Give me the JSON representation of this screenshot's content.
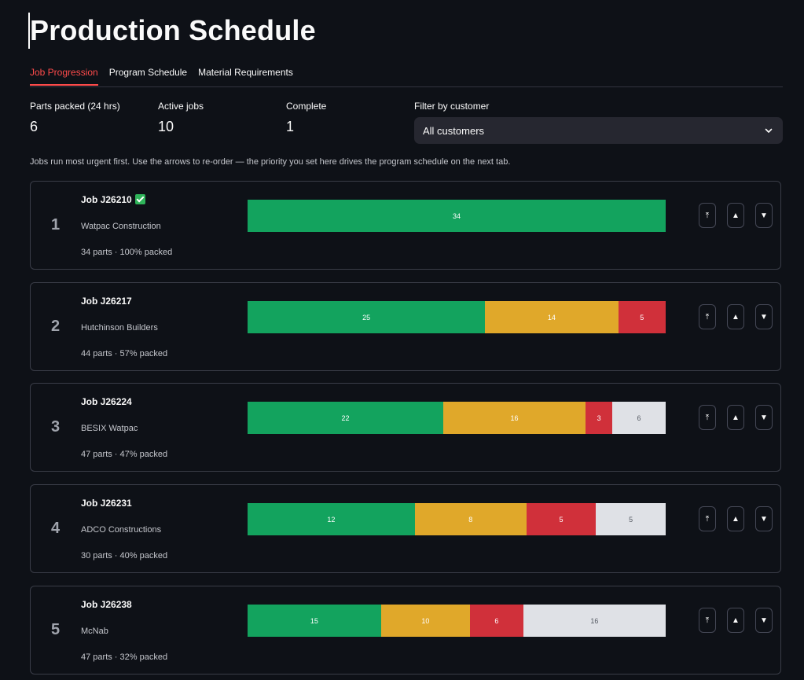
{
  "page_title": "Production Schedule",
  "tabs": [
    {
      "label": "Job Progression",
      "active": true
    },
    {
      "label": "Program Schedule",
      "active": false
    },
    {
      "label": "Material Requirements",
      "active": false
    }
  ],
  "metrics": [
    {
      "label": "Parts packed (24 hrs)",
      "value": "6"
    },
    {
      "label": "Active jobs",
      "value": "10"
    },
    {
      "label": "Complete",
      "value": "1"
    }
  ],
  "filter": {
    "label": "Filter by customer",
    "value": "All customers"
  },
  "caption": "Jobs run most urgent first. Use the arrows to re-order — the priority you set here drives the program schedule on the next tab.",
  "colors": {
    "packed": "#13a35e",
    "in_progress": "#e0a82a",
    "blocked": "#d0303a",
    "pending": "#dfe1e6",
    "accent": "#ff4b4b"
  },
  "jobs": [
    {
      "rank": "1",
      "name": "Job J26210",
      "complete": true,
      "customer": "Watpac Construction",
      "stats": "34 parts · 100% packed",
      "segments": [
        34,
        0,
        0,
        0
      ]
    },
    {
      "rank": "2",
      "name": "Job J26217",
      "complete": false,
      "customer": "Hutchinson Builders",
      "stats": "44 parts · 57% packed",
      "segments": [
        25,
        14,
        5,
        0
      ]
    },
    {
      "rank": "3",
      "name": "Job J26224",
      "complete": false,
      "customer": "BESIX Watpac",
      "stats": "47 parts · 47% packed",
      "segments": [
        22,
        16,
        3,
        6
      ]
    },
    {
      "rank": "4",
      "name": "Job J26231",
      "complete": false,
      "customer": "ADCO Constructions",
      "stats": "30 parts · 40% packed",
      "segments": [
        12,
        8,
        5,
        5
      ]
    },
    {
      "rank": "5",
      "name": "Job J26238",
      "complete": false,
      "customer": "McNab",
      "stats": "47 parts · 32% packed",
      "segments": [
        15,
        10,
        6,
        16
      ]
    }
  ],
  "buttons": {
    "top": "⤒",
    "up": "▲",
    "down": "▼"
  }
}
